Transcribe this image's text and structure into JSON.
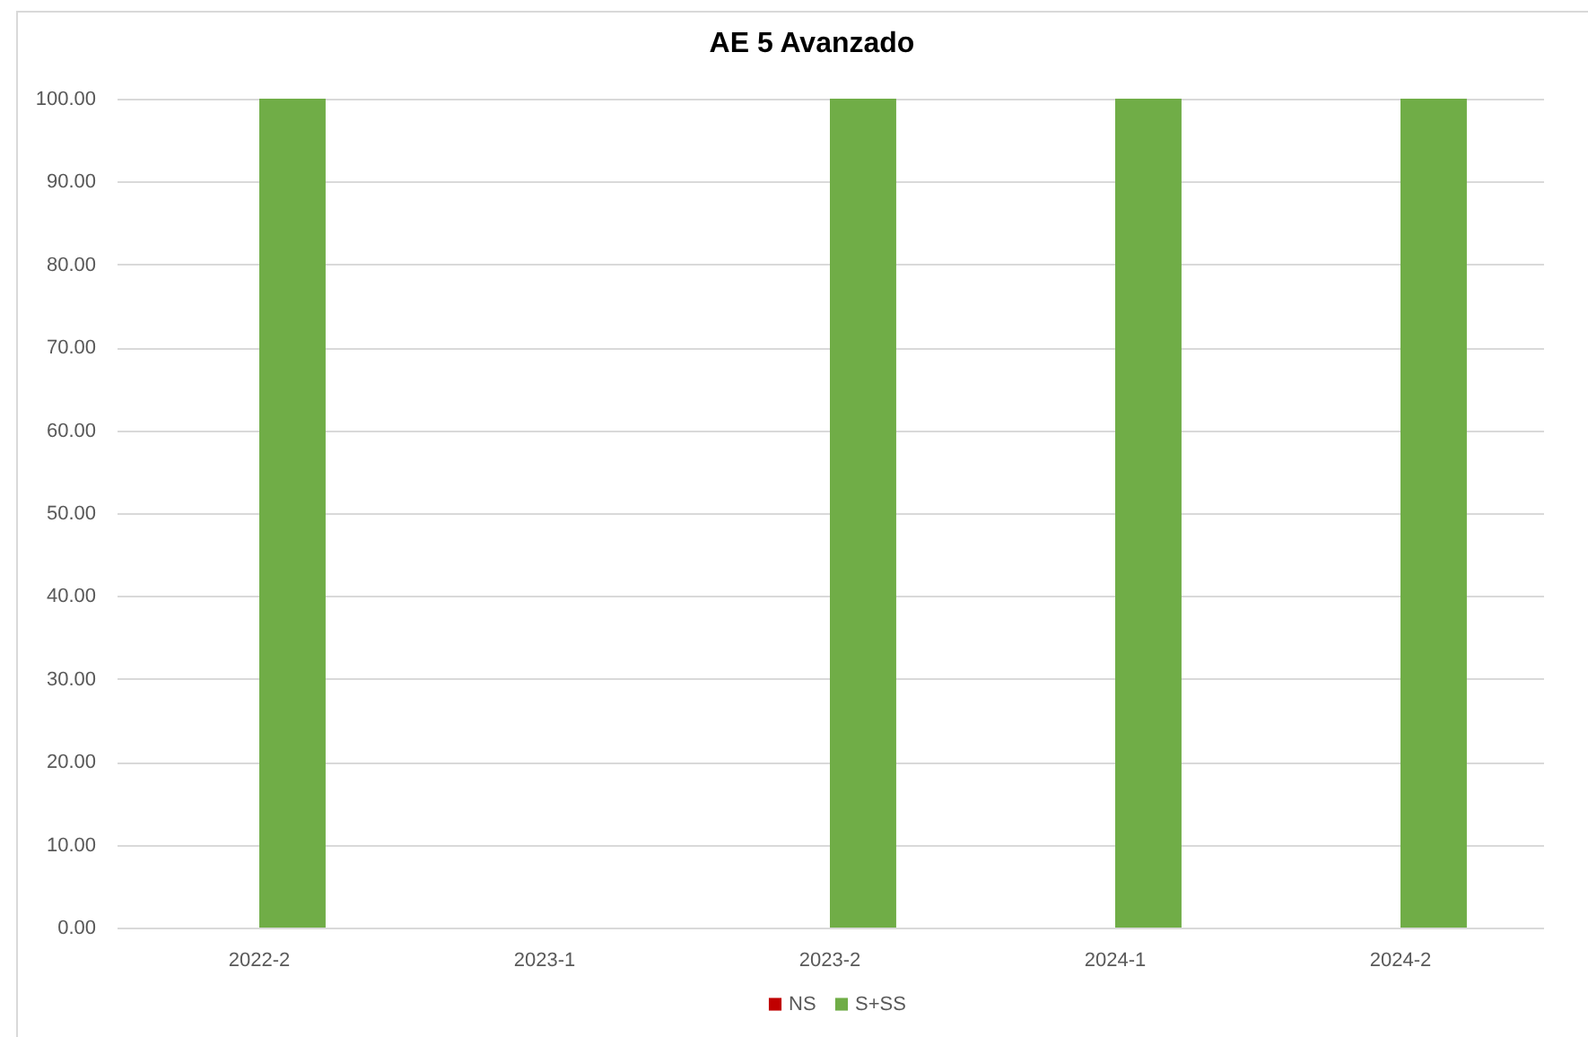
{
  "chart_data": {
    "type": "bar",
    "title": "AE 5 Avanzado",
    "categories": [
      "2022-2",
      "2023-1",
      "2023-2",
      "2024-1",
      "2024-2"
    ],
    "series": [
      {
        "name": "NS",
        "color": "#c00000",
        "values": [
          0,
          null,
          0,
          0,
          0
        ]
      },
      {
        "name": "S+SS",
        "color": "#70ad47",
        "values": [
          100,
          null,
          100,
          100,
          100
        ]
      }
    ],
    "ylim": [
      0,
      100
    ],
    "yticks": [
      {
        "value": 0,
        "label": "0.00"
      },
      {
        "value": 10,
        "label": "10.00"
      },
      {
        "value": 20,
        "label": "20.00"
      },
      {
        "value": 30,
        "label": "30.00"
      },
      {
        "value": 40,
        "label": "40.00"
      },
      {
        "value": 50,
        "label": "50.00"
      },
      {
        "value": 60,
        "label": "60.00"
      },
      {
        "value": 70,
        "label": "70.00"
      },
      {
        "value": 80,
        "label": "80.00"
      },
      {
        "value": 90,
        "label": "90.00"
      },
      {
        "value": 100,
        "label": "100.00"
      }
    ],
    "grid": "y",
    "legend": "bottom"
  }
}
